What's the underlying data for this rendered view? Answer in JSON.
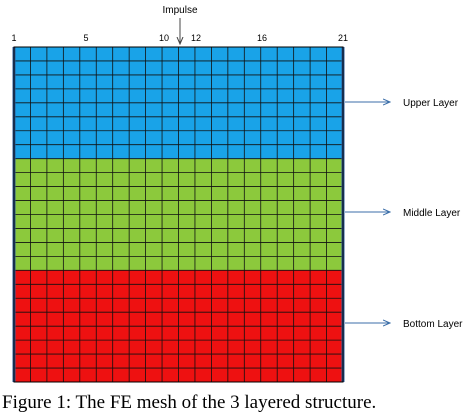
{
  "impulse_label": "Impulse",
  "node_numbers": [
    "1",
    "5",
    "10",
    "12",
    "16",
    "21"
  ],
  "layers": [
    {
      "label": "Upper Layer",
      "color": "#19a3e8",
      "rows": 8
    },
    {
      "label": "Middle Layer",
      "color": "#8cc93c",
      "rows": 8
    },
    {
      "label": "Bottom Layer",
      "color": "#ee1111",
      "rows": 8
    }
  ],
  "mesh": {
    "columns": 20
  },
  "caption": "Figure 1:  The FE mesh of the 3 layered structure."
}
